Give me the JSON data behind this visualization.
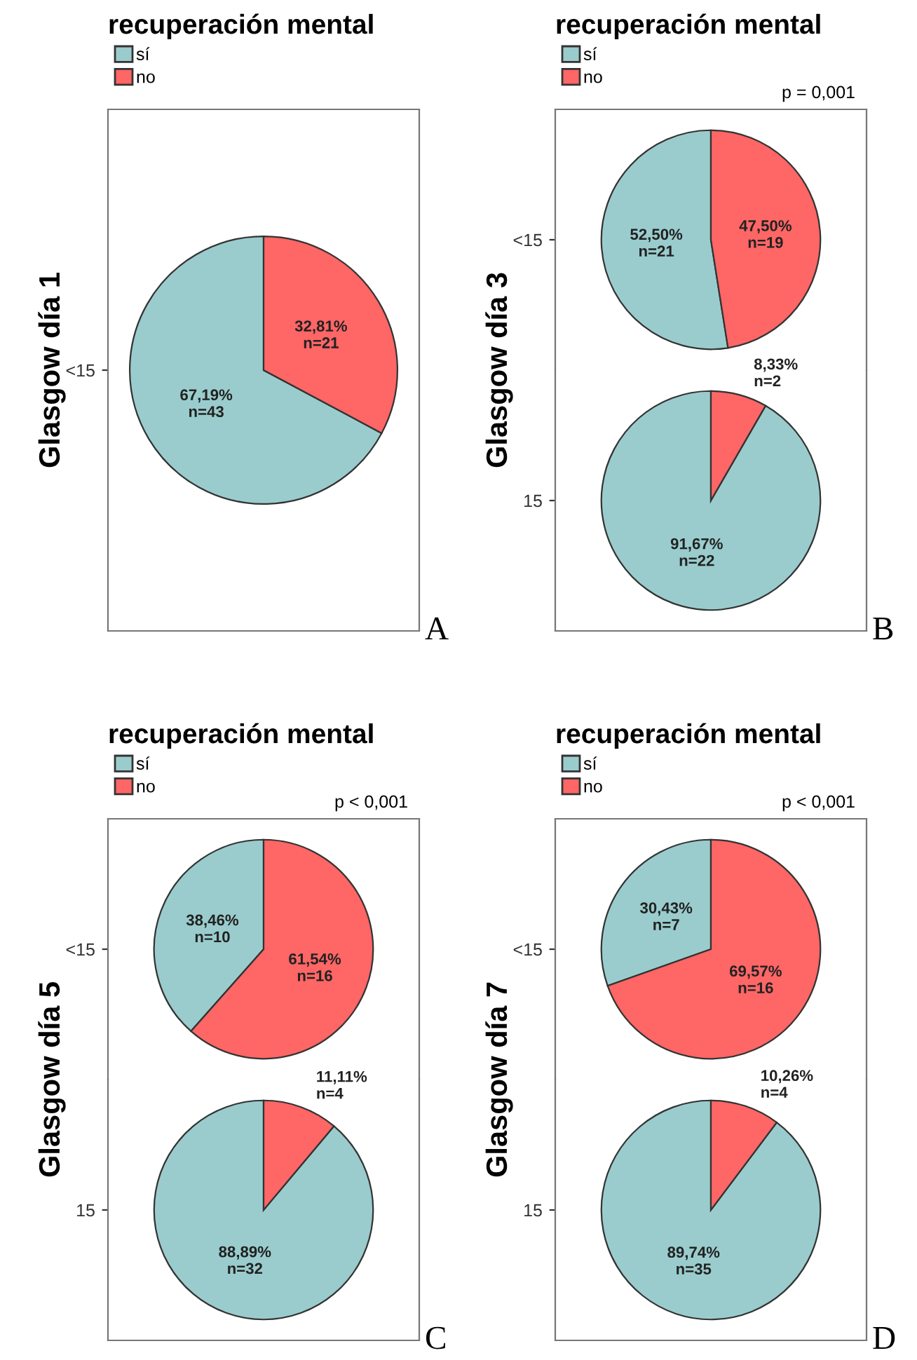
{
  "chart_data": [
    {
      "type": "pie",
      "title": "recuperación mental",
      "ylabel": "Glasgow día 1",
      "legend": "top left",
      "categories": [
        "sí",
        "no"
      ],
      "values": [
        67.19,
        32.81
      ],
      "colors": [
        "#9acccd",
        "#ff6666"
      ],
      "value_labels": [
        "67,19%\nn=43",
        "32,81%\nn=21"
      ],
      "annotations": [
        "<15",
        "A"
      ]
    },
    {
      "type": "pie",
      "title": "recuperación mental",
      "subtitle": "p = 0,001",
      "ylabel": "Glasgow día 3",
      "legend": "top left",
      "categories": [
        "sí",
        "no"
      ],
      "values": [
        52.5,
        47.5
      ],
      "colors": [
        "#9acccd",
        "#ff6666"
      ],
      "value_labels": [
        "52,50%\nn=21",
        "47,50%\nn=19"
      ],
      "annotations": [
        "<15"
      ]
    },
    {
      "type": "pie",
      "categories": [
        null,
        null
      ],
      "values": [
        91.67,
        8.33
      ],
      "colors": [
        "#9acccd",
        "#ff6666"
      ],
      "value_labels": [
        "91,67%\nn=22",
        "8,33%\nn=2"
      ],
      "annotations": [
        "15",
        "B"
      ]
    },
    {
      "type": "pie",
      "title": "recuperación mental",
      "subtitle": "p < 0,001",
      "ylabel": "Glasgow día 5",
      "legend": "top left",
      "categories": [
        "sí",
        "no"
      ],
      "values": [
        38.46,
        61.54
      ],
      "colors": [
        "#9acccd",
        "#ff6666"
      ],
      "value_labels": [
        "38,46%\nn=10",
        "61,54%\nn=16"
      ],
      "annotations": [
        "<15"
      ]
    },
    {
      "type": "pie",
      "categories": [
        null,
        null
      ],
      "values": [
        88.89,
        11.11
      ],
      "colors": [
        "#9acccd",
        "#ff6666"
      ],
      "value_labels": [
        "88,89%\nn=32",
        "11,11%\nn=4"
      ],
      "annotations": [
        "15",
        "C"
      ]
    },
    {
      "type": "pie",
      "title": "recuperación mental",
      "subtitle": "p < 0,001",
      "ylabel": "Glasgow día 7",
      "legend": "top left",
      "categories": [
        "sí",
        "no"
      ],
      "values": [
        30.43,
        69.57
      ],
      "colors": [
        "#9acccd",
        "#ff6666"
      ],
      "value_labels": [
        "30,43%\nn=7",
        "69,57%\nn=16"
      ],
      "annotations": [
        "<15"
      ]
    },
    {
      "type": "pie",
      "categories": [
        null,
        null
      ],
      "values": [
        89.74,
        10.26
      ],
      "colors": [
        "#9acccd",
        "#ff6666"
      ],
      "value_labels": [
        "89,74%\nn=35",
        "10,26%\nn=4"
      ],
      "annotations": [
        "15",
        "D"
      ]
    }
  ]
}
